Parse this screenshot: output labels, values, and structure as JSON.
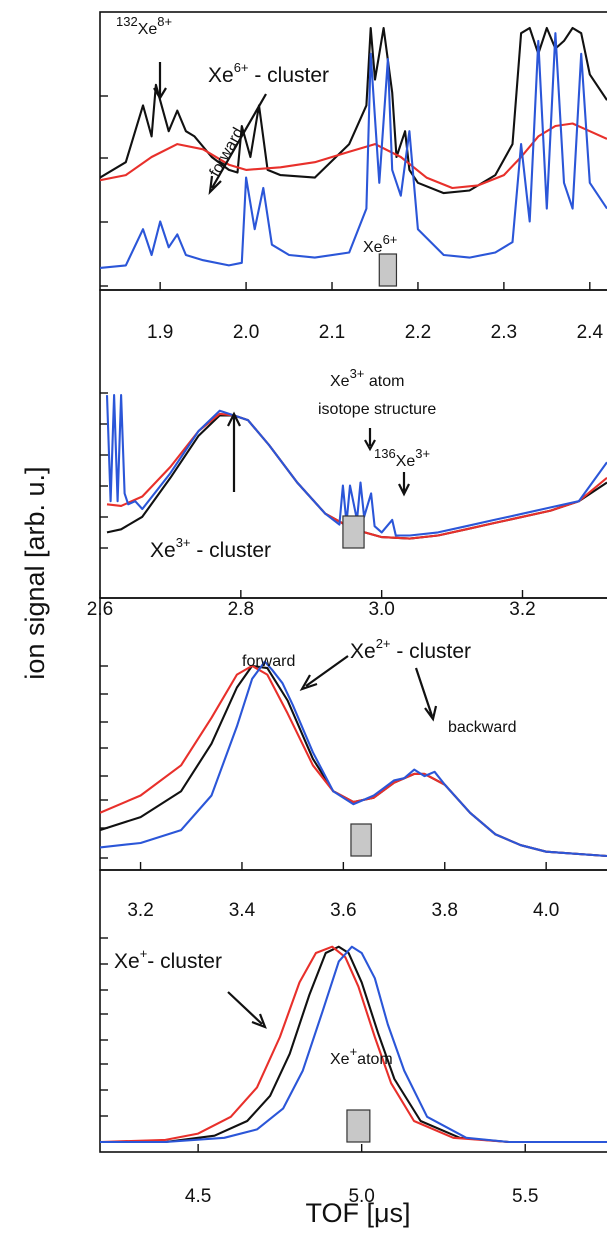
{
  "figure": {
    "ylabel": "ion signal [arb. u.]",
    "xlabel": "TOF [μs]"
  },
  "colors": {
    "black": "#111111",
    "red": "#e8302b",
    "blue": "#2b56d8",
    "marker": "#c8c8c8"
  },
  "chart_data": [
    {
      "type": "line",
      "panel": 1,
      "xlim": [
        1.83,
        2.42
      ],
      "x_ticks": [
        "1.9",
        "2.0",
        "2.1",
        "2.2",
        "2.3",
        "2.4"
      ],
      "x_tick_values": [
        1.9,
        2.0,
        2.1,
        2.2,
        2.3,
        2.4
      ],
      "ylim": [
        0,
        1
      ],
      "marker_box_x": [
        2.155,
        2.175
      ],
      "annotations": {
        "iso_mass": "132",
        "iso_elem": "Xe",
        "iso_charge": "8+",
        "cluster_elem": "Xe",
        "cluster_charge": "6+",
        "cluster_suffix": " - cluster",
        "forward": "forward",
        "atom_elem": "Xe",
        "atom_charge": "6+"
      },
      "series": [
        {
          "color": "black",
          "x": [
            1.83,
            1.86,
            1.88,
            1.89,
            1.895,
            1.905,
            1.91,
            1.92,
            1.93,
            1.94,
            1.96,
            1.98,
            1.99,
            1.995,
            2.005,
            2.015,
            2.025,
            2.04,
            2.08,
            2.12,
            2.14,
            2.145,
            2.15,
            2.16,
            2.17,
            2.175,
            2.185,
            2.19,
            2.2,
            2.23,
            2.26,
            2.29,
            2.31,
            2.32,
            2.33,
            2.34,
            2.35,
            2.36,
            2.37,
            2.38,
            2.39,
            2.4,
            2.42
          ],
          "y": [
            0.42,
            0.48,
            0.7,
            0.58,
            0.78,
            0.66,
            0.6,
            0.68,
            0.6,
            0.58,
            0.5,
            0.45,
            0.44,
            0.62,
            0.5,
            0.7,
            0.45,
            0.43,
            0.42,
            0.55,
            0.7,
            1.0,
            0.8,
            1.0,
            0.75,
            0.5,
            0.6,
            0.45,
            0.4,
            0.36,
            0.37,
            0.43,
            0.55,
            0.98,
            1.0,
            0.9,
            1.0,
            0.92,
            0.95,
            1.0,
            0.98,
            0.82,
            0.72
          ]
        },
        {
          "color": "red",
          "x": [
            1.83,
            1.86,
            1.89,
            1.92,
            1.95,
            1.98,
            2.0,
            2.04,
            2.08,
            2.12,
            2.15,
            2.18,
            2.21,
            2.24,
            2.27,
            2.3,
            2.32,
            2.34,
            2.36,
            2.38,
            2.4,
            2.42
          ],
          "y": [
            0.41,
            0.43,
            0.5,
            0.55,
            0.53,
            0.47,
            0.45,
            0.46,
            0.48,
            0.52,
            0.55,
            0.5,
            0.42,
            0.38,
            0.39,
            0.43,
            0.5,
            0.58,
            0.62,
            0.63,
            0.6,
            0.57
          ]
        },
        {
          "color": "blue",
          "x": [
            1.83,
            1.86,
            1.88,
            1.89,
            1.9,
            1.91,
            1.92,
            1.93,
            1.95,
            1.98,
            1.995,
            2.0,
            2.01,
            2.02,
            2.03,
            2.05,
            2.08,
            2.12,
            2.14,
            2.145,
            2.155,
            2.165,
            2.17,
            2.18,
            2.19,
            2.2,
            2.23,
            2.26,
            2.29,
            2.31,
            2.32,
            2.33,
            2.34,
            2.35,
            2.36,
            2.37,
            2.38,
            2.39,
            2.4,
            2.42
          ],
          "y": [
            0.07,
            0.08,
            0.22,
            0.12,
            0.25,
            0.15,
            0.2,
            0.12,
            0.1,
            0.08,
            0.09,
            0.42,
            0.22,
            0.38,
            0.16,
            0.12,
            0.11,
            0.13,
            0.3,
            0.9,
            0.4,
            0.88,
            0.45,
            0.35,
            0.6,
            0.22,
            0.12,
            0.11,
            0.13,
            0.17,
            0.55,
            0.25,
            0.95,
            0.3,
            0.98,
            0.4,
            0.3,
            0.9,
            0.4,
            0.3
          ]
        }
      ]
    },
    {
      "type": "line",
      "panel": 2,
      "xlim": [
        2.6,
        3.32
      ],
      "x_ticks": [
        "2.6",
        "2.8",
        "3.0",
        "3.2"
      ],
      "x_tick_values": [
        2.6,
        2.8,
        3.0,
        3.2
      ],
      "ylim": [
        0,
        1
      ],
      "marker_box_x": [
        2.945,
        2.975
      ],
      "annotations": {
        "atom_elem": "Xe",
        "atom_charge": "3+",
        "atom_suffix": " atom",
        "isotope": "isotope structure",
        "iso_mass": "136",
        "iso_elem": "Xe",
        "iso_charge": "3+",
        "cluster_elem": "Xe",
        "cluster_charge": "3+",
        "cluster_suffix": " - cluster"
      },
      "series": [
        {
          "color": "black",
          "x": [
            2.61,
            2.63,
            2.66,
            2.7,
            2.74,
            2.77,
            2.79,
            2.81,
            2.84,
            2.88,
            2.92,
            2.96,
            3.0,
            3.04,
            3.08,
            3.12,
            3.16,
            3.2,
            3.24,
            3.28,
            3.32
          ],
          "y": [
            0.1,
            0.12,
            0.2,
            0.45,
            0.72,
            0.85,
            0.85,
            0.82,
            0.66,
            0.42,
            0.22,
            0.12,
            0.07,
            0.06,
            0.08,
            0.12,
            0.16,
            0.2,
            0.24,
            0.3,
            0.42
          ]
        },
        {
          "color": "red",
          "x": [
            2.61,
            2.63,
            2.66,
            2.7,
            2.74,
            2.77,
            2.79,
            2.81,
            2.84,
            2.88,
            2.92,
            2.96,
            3.0,
            3.04,
            3.08,
            3.12,
            3.16,
            3.2,
            3.24,
            3.28,
            3.32
          ],
          "y": [
            0.28,
            0.27,
            0.33,
            0.52,
            0.75,
            0.86,
            0.85,
            0.82,
            0.66,
            0.42,
            0.22,
            0.12,
            0.07,
            0.06,
            0.08,
            0.12,
            0.16,
            0.2,
            0.24,
            0.3,
            0.45
          ]
        },
        {
          "color": "blue",
          "x": [
            2.61,
            2.615,
            2.62,
            2.625,
            2.63,
            2.635,
            2.64,
            2.65,
            2.66,
            2.7,
            2.74,
            2.77,
            2.79,
            2.81,
            2.84,
            2.88,
            2.92,
            2.94,
            2.945,
            2.95,
            2.955,
            2.965,
            2.97,
            2.975,
            2.985,
            2.99,
            3.0,
            3.015,
            3.02,
            3.04,
            3.08,
            3.12,
            3.16,
            3.2,
            3.24,
            3.28,
            3.32
          ],
          "y": [
            0.98,
            0.3,
            0.98,
            0.3,
            0.98,
            0.35,
            0.28,
            0.3,
            0.25,
            0.48,
            0.75,
            0.88,
            0.85,
            0.82,
            0.66,
            0.42,
            0.22,
            0.15,
            0.4,
            0.16,
            0.4,
            0.18,
            0.42,
            0.2,
            0.35,
            0.14,
            0.1,
            0.18,
            0.08,
            0.08,
            0.1,
            0.14,
            0.18,
            0.22,
            0.26,
            0.3,
            0.55
          ]
        }
      ]
    },
    {
      "type": "line",
      "panel": 3,
      "xlim": [
        3.12,
        4.12
      ],
      "x_ticks": [
        "3.2",
        "3.4",
        "3.6",
        "3.8",
        "4.0"
      ],
      "x_tick_values": [
        3.2,
        3.4,
        3.6,
        3.8,
        4.0
      ],
      "ylim": [
        0,
        1
      ],
      "marker_box_x": [
        3.615,
        3.655
      ],
      "annotations": {
        "forward": "forward",
        "cluster_elem": "Xe",
        "cluster_charge": "2+",
        "cluster_suffix": " - cluster",
        "backward": "backward"
      },
      "series": [
        {
          "color": "black",
          "x": [
            3.12,
            3.2,
            3.28,
            3.34,
            3.39,
            3.42,
            3.45,
            3.49,
            3.54,
            3.58,
            3.62,
            3.66,
            3.7,
            3.74,
            3.76,
            3.8,
            3.85,
            3.9,
            3.95,
            4.0,
            4.12
          ],
          "y": [
            0.12,
            0.18,
            0.3,
            0.52,
            0.78,
            0.88,
            0.87,
            0.72,
            0.45,
            0.3,
            0.25,
            0.27,
            0.34,
            0.38,
            0.38,
            0.33,
            0.2,
            0.1,
            0.05,
            0.02,
            0.0
          ]
        },
        {
          "color": "red",
          "x": [
            3.12,
            3.2,
            3.28,
            3.34,
            3.39,
            3.42,
            3.45,
            3.49,
            3.54,
            3.58,
            3.62,
            3.66,
            3.7,
            3.74,
            3.76,
            3.8,
            3.85,
            3.9,
            3.95,
            4.0,
            4.12
          ],
          "y": [
            0.2,
            0.28,
            0.42,
            0.64,
            0.84,
            0.88,
            0.84,
            0.66,
            0.42,
            0.3,
            0.25,
            0.27,
            0.34,
            0.38,
            0.38,
            0.33,
            0.2,
            0.1,
            0.05,
            0.02,
            0.0
          ]
        },
        {
          "color": "blue",
          "x": [
            3.12,
            3.2,
            3.28,
            3.34,
            3.39,
            3.42,
            3.445,
            3.46,
            3.48,
            3.5,
            3.54,
            3.58,
            3.62,
            3.66,
            3.7,
            3.72,
            3.74,
            3.76,
            3.78,
            3.8,
            3.85,
            3.9,
            3.95,
            4.0,
            4.12
          ],
          "y": [
            0.04,
            0.06,
            0.12,
            0.28,
            0.6,
            0.82,
            0.9,
            0.86,
            0.8,
            0.7,
            0.48,
            0.3,
            0.24,
            0.28,
            0.35,
            0.36,
            0.4,
            0.37,
            0.39,
            0.33,
            0.2,
            0.1,
            0.05,
            0.02,
            0.0
          ]
        }
      ]
    },
    {
      "type": "line",
      "panel": 4,
      "xlim": [
        4.2,
        5.75
      ],
      "x_ticks": [
        "4.5",
        "5.0",
        "5.5"
      ],
      "x_tick_values": [
        4.5,
        5.0,
        5.5
      ],
      "ylim": [
        0,
        1
      ],
      "marker_box_x": [
        4.955,
        5.025
      ],
      "annotations": {
        "cluster_elem": "Xe",
        "cluster_charge": "+",
        "cluster_suffix": "- cluster",
        "atom_elem": "Xe",
        "atom_charge": "+",
        "atom_suffix": "atom"
      },
      "series": [
        {
          "color": "black",
          "x": [
            4.2,
            4.4,
            4.55,
            4.65,
            4.72,
            4.78,
            4.84,
            4.89,
            4.93,
            4.96,
            5.0,
            5.05,
            5.1,
            5.18,
            5.3,
            5.45,
            5.75
          ],
          "y": [
            0.0,
            0.0,
            0.03,
            0.1,
            0.22,
            0.42,
            0.7,
            0.9,
            0.93,
            0.9,
            0.76,
            0.52,
            0.3,
            0.1,
            0.02,
            0.0,
            0.0
          ]
        },
        {
          "color": "red",
          "x": [
            4.2,
            4.4,
            4.5,
            4.6,
            4.68,
            4.75,
            4.81,
            4.86,
            4.91,
            4.95,
            4.99,
            5.04,
            5.09,
            5.16,
            5.28,
            5.45,
            5.75
          ],
          "y": [
            0.0,
            0.01,
            0.04,
            0.12,
            0.26,
            0.5,
            0.76,
            0.9,
            0.93,
            0.88,
            0.74,
            0.5,
            0.28,
            0.1,
            0.02,
            0.0,
            0.0
          ]
        },
        {
          "color": "blue",
          "x": [
            4.2,
            4.4,
            4.58,
            4.68,
            4.76,
            4.82,
            4.88,
            4.93,
            4.97,
            5.0,
            5.04,
            5.08,
            5.13,
            5.2,
            5.32,
            5.45,
            5.75
          ],
          "y": [
            0.0,
            0.0,
            0.02,
            0.06,
            0.16,
            0.34,
            0.62,
            0.86,
            0.93,
            0.9,
            0.78,
            0.56,
            0.34,
            0.12,
            0.02,
            0.0,
            0.0
          ]
        }
      ]
    }
  ]
}
